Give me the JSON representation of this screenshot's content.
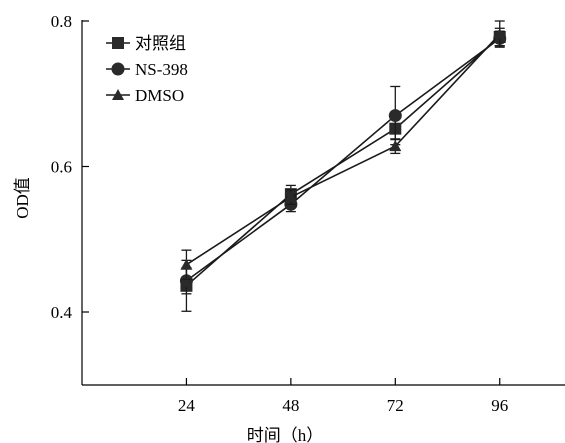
{
  "chart_data": {
    "type": "line",
    "title": "",
    "xlabel": "时间（h）",
    "ylabel": "OD值",
    "x": [
      24,
      48,
      72,
      96
    ],
    "xlim": [
      0,
      111
    ],
    "ylim": [
      0.3,
      0.8
    ],
    "y_ticks": [
      0.4,
      0.6,
      0.8
    ],
    "y_tick_labels": [
      "0.4",
      "0.6",
      "0.8"
    ],
    "x_tick_labels": [
      "24",
      "48",
      "72",
      "96"
    ],
    "grid": false,
    "legend_position": "top-left",
    "series": [
      {
        "name": "对照组",
        "marker": "square",
        "values": [
          0.436,
          0.562,
          0.652,
          0.778
        ],
        "errors": [
          0.035,
          0.012,
          0.015,
          0.012
        ]
      },
      {
        "name": "NS-398",
        "marker": "circle",
        "values": [
          0.443,
          0.548,
          0.67,
          0.776
        ],
        "errors": [
          0.018,
          0.01,
          0.04,
          0.01
        ]
      },
      {
        "name": "DMSO",
        "marker": "triangle",
        "values": [
          0.465,
          0.558,
          0.628,
          0.782
        ],
        "errors": [
          0.02,
          0.01,
          0.01,
          0.018
        ]
      }
    ]
  }
}
